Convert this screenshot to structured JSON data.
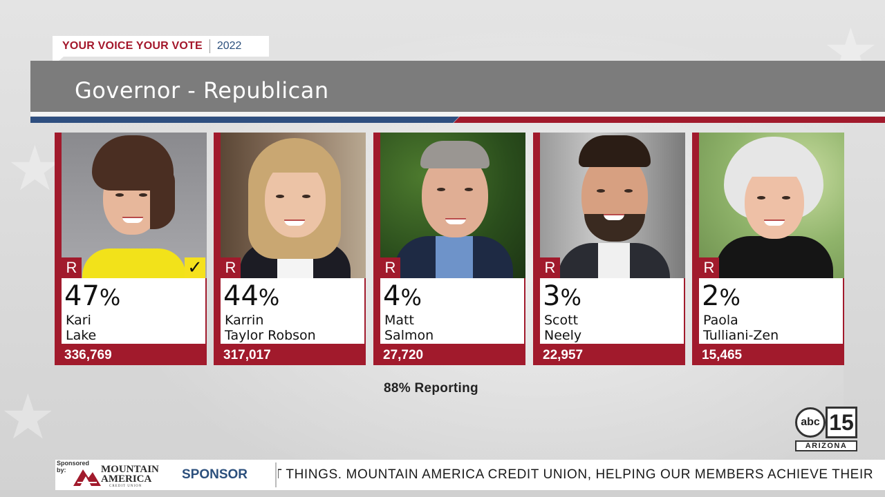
{
  "brand": {
    "name": "YOUR VOICE YOUR VOTE",
    "year": "2022"
  },
  "race": {
    "title": "Governor - Republican"
  },
  "candidates": [
    {
      "party": "R",
      "percent": "47",
      "pct_symbol": "%",
      "first": "Kari",
      "last": "Lake",
      "votes": "336,769",
      "winner": true
    },
    {
      "party": "R",
      "percent": "44",
      "pct_symbol": "%",
      "first": "Karrin",
      "last": "Taylor Robson",
      "votes": "317,017",
      "winner": false
    },
    {
      "party": "R",
      "percent": "4",
      "pct_symbol": "%",
      "first": "Matt",
      "last": "Salmon",
      "votes": "27,720",
      "winner": false
    },
    {
      "party": "R",
      "percent": "3",
      "pct_symbol": "%",
      "first": "Scott",
      "last": "Neely",
      "votes": "22,957",
      "winner": false
    },
    {
      "party": "R",
      "percent": "2",
      "pct_symbol": "%",
      "first": "Paola",
      "last": "Tulliani-Zen",
      "votes": "15,465",
      "winner": false
    }
  ],
  "winner_mark": "✓",
  "reporting": "88% Reporting",
  "station": {
    "network": "abc",
    "channel": "15",
    "region": "ARIZONA"
  },
  "ticker": {
    "sponsored_by": "Sponsored by:",
    "sponsor_name_line1": "MOUNTAIN",
    "sponsor_name_line2": "AMERICA",
    "sponsor_sub": "CREDIT UNION",
    "label": "SPONSOR",
    "crawl": "T THINGS. MOUNTAIN AMERICA CREDIT UNION, HELPING OUR MEMBERS ACHIEVE THEIR"
  },
  "colors": {
    "republican_red": "#a11a2c",
    "blue": "#2f4f80",
    "winner_yellow": "#f5e11d",
    "title_gray": "#7c7c7c"
  }
}
